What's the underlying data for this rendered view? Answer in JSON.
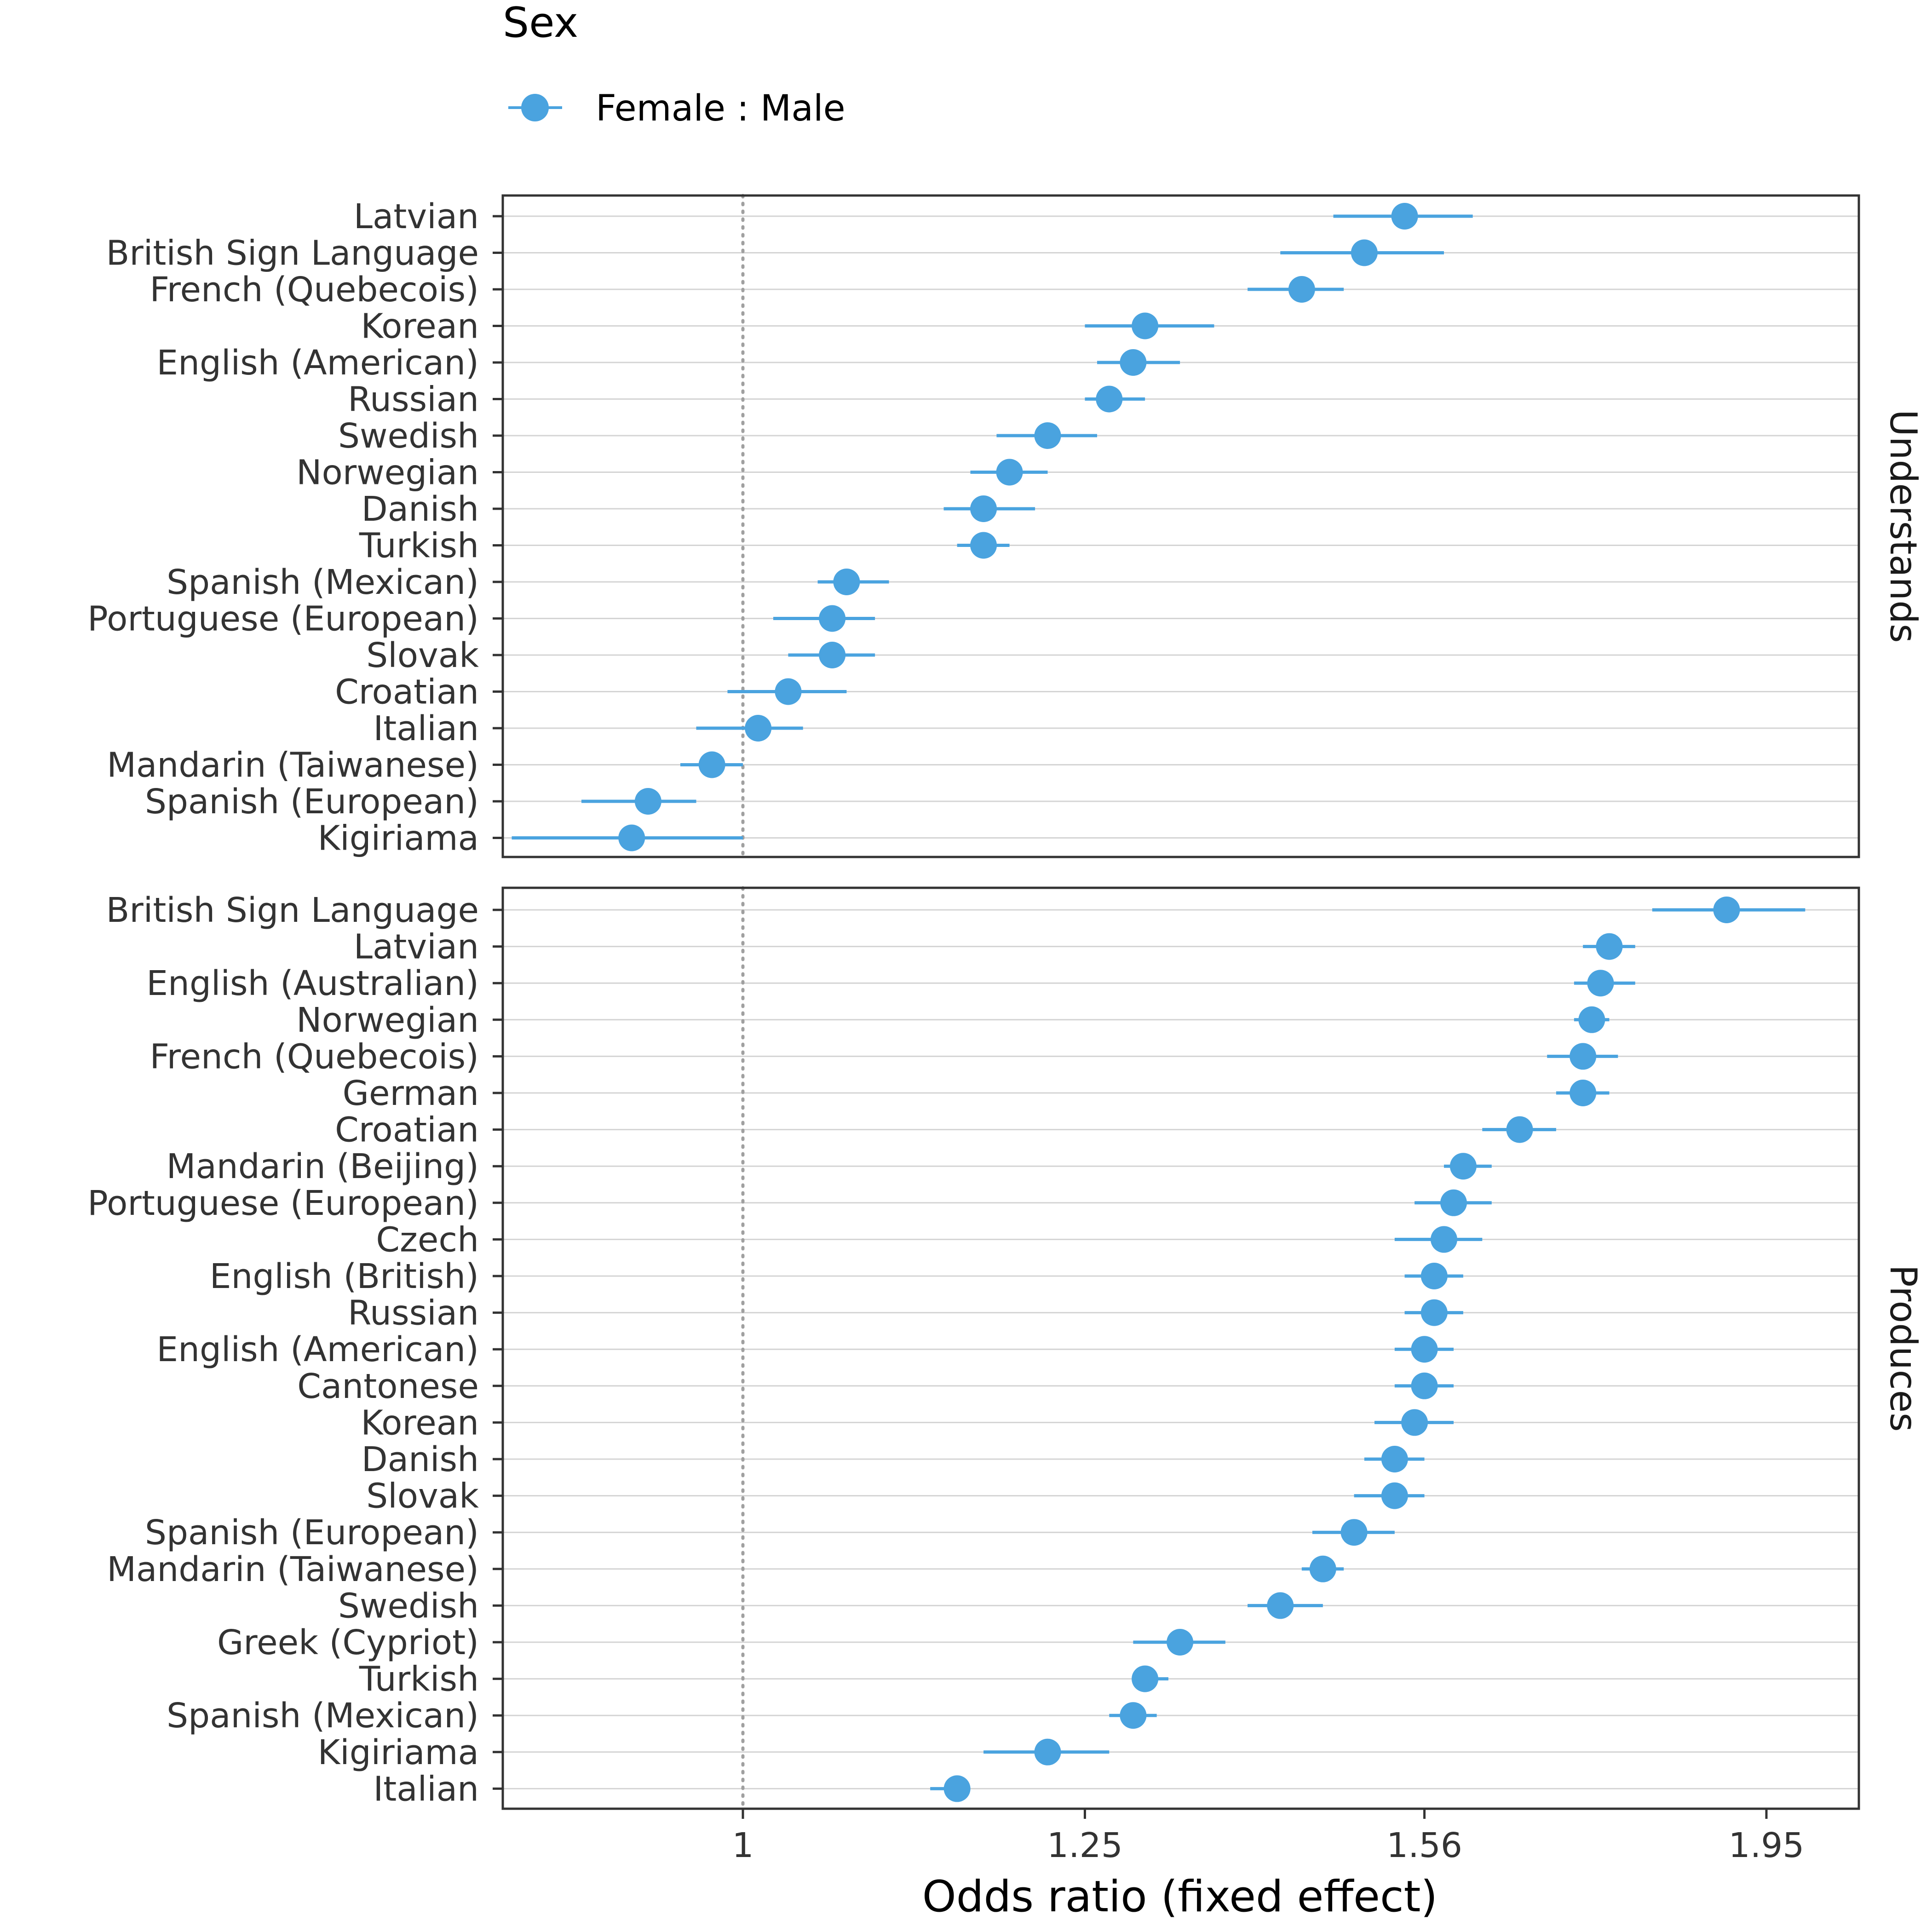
{
  "chart_data": {
    "type": "forest",
    "xlabel": "Odds ratio (fixed effect)",
    "x_scale": "log",
    "xlim": [
      0.9,
      2.04
    ],
    "x_ticks": [
      {
        "value": 1,
        "label": "1"
      },
      {
        "value": 1.25,
        "label": "1.25"
      },
      {
        "value": 1.56,
        "label": "1.56"
      },
      {
        "value": 1.95,
        "label": "1.95"
      }
    ],
    "reference_line": 1,
    "grid": "horizontal major lines",
    "legend": {
      "title": "Sex",
      "position": "top-left",
      "entries": [
        "Female : Male"
      ]
    },
    "series_color": "#4aa3df",
    "panels": [
      {
        "name": "Understands",
        "points": [
          {
            "language": "Latvian",
            "estimate": 1.54,
            "lower": 1.47,
            "upper": 1.61
          },
          {
            "language": "British Sign Language",
            "estimate": 1.5,
            "lower": 1.42,
            "upper": 1.58
          },
          {
            "language": "French (Quebecois)",
            "estimate": 1.44,
            "lower": 1.39,
            "upper": 1.48
          },
          {
            "language": "Korean",
            "estimate": 1.3,
            "lower": 1.25,
            "upper": 1.36
          },
          {
            "language": "English (American)",
            "estimate": 1.29,
            "lower": 1.26,
            "upper": 1.33
          },
          {
            "language": "Russian",
            "estimate": 1.27,
            "lower": 1.25,
            "upper": 1.3
          },
          {
            "language": "Swedish",
            "estimate": 1.22,
            "lower": 1.18,
            "upper": 1.26
          },
          {
            "language": "Norwegian",
            "estimate": 1.19,
            "lower": 1.16,
            "upper": 1.22
          },
          {
            "language": "Danish",
            "estimate": 1.17,
            "lower": 1.14,
            "upper": 1.21
          },
          {
            "language": "Turkish",
            "estimate": 1.17,
            "lower": 1.15,
            "upper": 1.19
          },
          {
            "language": "Spanish (Mexican)",
            "estimate": 1.07,
            "lower": 1.05,
            "upper": 1.1
          },
          {
            "language": "Portuguese (European)",
            "estimate": 1.06,
            "lower": 1.02,
            "upper": 1.09
          },
          {
            "language": "Slovak",
            "estimate": 1.06,
            "lower": 1.03,
            "upper": 1.09
          },
          {
            "language": "Croatian",
            "estimate": 1.03,
            "lower": 0.99,
            "upper": 1.07
          },
          {
            "language": "Italian",
            "estimate": 1.01,
            "lower": 0.97,
            "upper": 1.04
          },
          {
            "language": "Mandarin (Taiwanese)",
            "estimate": 0.98,
            "lower": 0.96,
            "upper": 1.0
          },
          {
            "language": "Spanish (European)",
            "estimate": 0.94,
            "lower": 0.9,
            "upper": 0.97
          },
          {
            "language": "Kigiriama",
            "estimate": 0.93,
            "lower": 0.86,
            "upper": 1.0
          }
        ]
      },
      {
        "name": "Produces",
        "points": [
          {
            "language": "British Sign Language",
            "estimate": 1.9,
            "lower": 1.81,
            "upper": 2.0
          },
          {
            "language": "Latvian",
            "estimate": 1.76,
            "lower": 1.73,
            "upper": 1.79
          },
          {
            "language": "English (Australian)",
            "estimate": 1.75,
            "lower": 1.72,
            "upper": 1.79
          },
          {
            "language": "Norwegian",
            "estimate": 1.74,
            "lower": 1.72,
            "upper": 1.76
          },
          {
            "language": "French (Quebecois)",
            "estimate": 1.73,
            "lower": 1.69,
            "upper": 1.77
          },
          {
            "language": "German",
            "estimate": 1.73,
            "lower": 1.7,
            "upper": 1.76
          },
          {
            "language": "Croatian",
            "estimate": 1.66,
            "lower": 1.62,
            "upper": 1.7
          },
          {
            "language": "Mandarin (Beijing)",
            "estimate": 1.6,
            "lower": 1.58,
            "upper": 1.63
          },
          {
            "language": "Portuguese (European)",
            "estimate": 1.59,
            "lower": 1.55,
            "upper": 1.63
          },
          {
            "language": "Czech",
            "estimate": 1.58,
            "lower": 1.53,
            "upper": 1.62
          },
          {
            "language": "English (British)",
            "estimate": 1.57,
            "lower": 1.54,
            "upper": 1.6
          },
          {
            "language": "Russian",
            "estimate": 1.57,
            "lower": 1.54,
            "upper": 1.6
          },
          {
            "language": "English (American)",
            "estimate": 1.56,
            "lower": 1.53,
            "upper": 1.59
          },
          {
            "language": "Cantonese",
            "estimate": 1.56,
            "lower": 1.53,
            "upper": 1.59
          },
          {
            "language": "Korean",
            "estimate": 1.55,
            "lower": 1.51,
            "upper": 1.59
          },
          {
            "language": "Danish",
            "estimate": 1.53,
            "lower": 1.5,
            "upper": 1.56
          },
          {
            "language": "Slovak",
            "estimate": 1.53,
            "lower": 1.49,
            "upper": 1.56
          },
          {
            "language": "Spanish (European)",
            "estimate": 1.49,
            "lower": 1.45,
            "upper": 1.53
          },
          {
            "language": "Mandarin (Taiwanese)",
            "estimate": 1.46,
            "lower": 1.44,
            "upper": 1.48
          },
          {
            "language": "Swedish",
            "estimate": 1.42,
            "lower": 1.39,
            "upper": 1.46
          },
          {
            "language": "Greek (Cypriot)",
            "estimate": 1.33,
            "lower": 1.29,
            "upper": 1.37
          },
          {
            "language": "Turkish",
            "estimate": 1.3,
            "lower": 1.29,
            "upper": 1.32
          },
          {
            "language": "Spanish (Mexican)",
            "estimate": 1.29,
            "lower": 1.27,
            "upper": 1.31
          },
          {
            "language": "Kigiriama",
            "estimate": 1.22,
            "lower": 1.17,
            "upper": 1.27
          },
          {
            "language": "Italian",
            "estimate": 1.15,
            "lower": 1.13,
            "upper": 1.16
          }
        ]
      }
    ]
  }
}
